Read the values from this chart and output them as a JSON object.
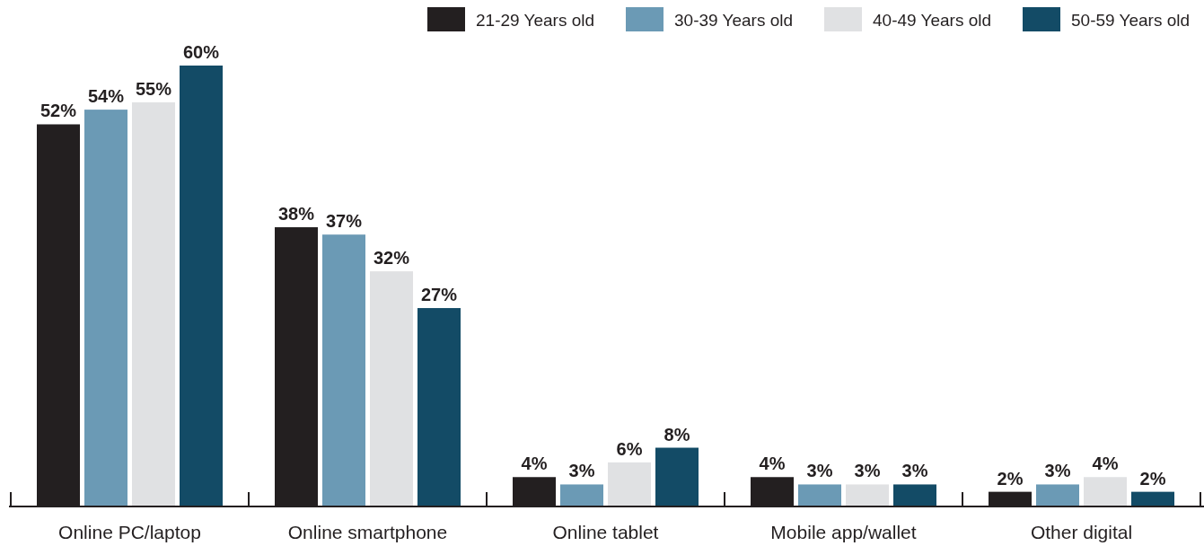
{
  "chart_data": {
    "type": "bar",
    "categories": [
      "Online PC/laptop",
      "Online smartphone",
      "Online tablet",
      "Mobile app/wallet",
      "Other digital"
    ],
    "series": [
      {
        "name": "21-29 Years old",
        "color": "#231f20",
        "values": [
          52,
          38,
          4,
          4,
          2
        ],
        "value_labels": [
          "52%",
          "38%",
          "4%",
          "4%",
          "2%"
        ]
      },
      {
        "name": "30-39 Years old",
        "color": "#6b9ab5",
        "values": [
          54,
          37,
          3,
          3,
          3
        ],
        "value_labels": [
          "54%",
          "37%",
          "3%",
          "3%",
          "3%"
        ]
      },
      {
        "name": "40-49 Years old",
        "color": "#e0e1e3",
        "values": [
          55,
          32,
          6,
          3,
          4
        ],
        "value_labels": [
          "55%",
          "32%",
          "6%",
          "3%",
          "4%"
        ]
      },
      {
        "name": "50-59 Years old",
        "color": "#134b66",
        "values": [
          60,
          27,
          8,
          3,
          2
        ],
        "value_labels": [
          "60%",
          "27%",
          "8%",
          "3%",
          "2%"
        ]
      }
    ],
    "legend": "top right"
  }
}
